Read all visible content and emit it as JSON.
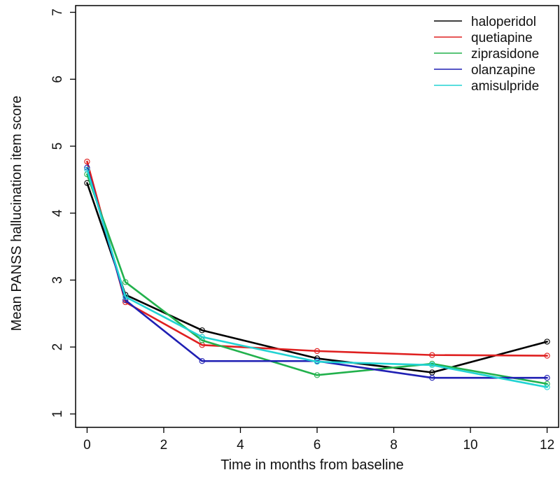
{
  "chart_data": {
    "type": "line",
    "title": "",
    "xlabel": "Time in months from baseline",
    "ylabel": "Mean PANSS hallucination item score",
    "x": [
      0,
      1,
      3,
      6,
      9,
      12
    ],
    "xticks": [
      0,
      2,
      4,
      6,
      8,
      10,
      12
    ],
    "yticks": [
      1,
      2,
      3,
      4,
      5,
      6,
      7
    ],
    "xlim": [
      -0.3,
      12.3
    ],
    "ylim": [
      0.8,
      7.1
    ],
    "grid": false,
    "legend_position": "top-right",
    "series": [
      {
        "name": "haloperidol",
        "color": "#000000",
        "values": [
          4.45,
          2.78,
          2.25,
          1.83,
          1.62,
          2.08
        ]
      },
      {
        "name": "quetiapine",
        "color": "#DF2020",
        "values": [
          4.77,
          2.67,
          2.03,
          1.94,
          1.88,
          1.87
        ]
      },
      {
        "name": "ziprasidone",
        "color": "#22B14C",
        "values": [
          4.58,
          2.97,
          2.1,
          1.58,
          1.75,
          1.45
        ]
      },
      {
        "name": "olanzapine",
        "color": "#1F1FB3",
        "values": [
          4.68,
          2.7,
          1.79,
          1.79,
          1.54,
          1.54
        ]
      },
      {
        "name": "amisulpride",
        "color": "#22D3D3",
        "values": [
          4.65,
          2.75,
          2.15,
          1.78,
          1.73,
          1.4
        ]
      }
    ]
  }
}
